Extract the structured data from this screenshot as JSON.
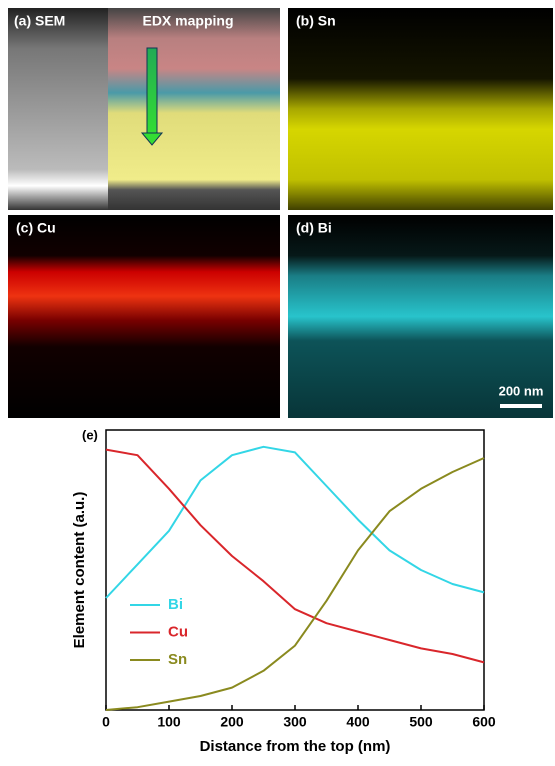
{
  "panels": {
    "a": "(a) SEM",
    "a_overlay": "EDX mapping",
    "b": "(b) Sn",
    "c": "(c) Cu",
    "d": "(d) Bi",
    "scale_bar": "200 nm"
  },
  "chart_data": {
    "type": "line",
    "panel_label": "(e)",
    "x_label": "Distance from the top (nm)",
    "y_label": "Element content (a.u.)",
    "x": [
      0,
      50,
      100,
      150,
      200,
      250,
      300,
      350,
      400,
      450,
      500,
      550,
      600
    ],
    "xlim": [
      0,
      600
    ],
    "xticks": [
      0,
      100,
      200,
      300,
      400,
      500,
      600
    ],
    "ylim": [
      0,
      1
    ],
    "series": [
      {
        "name": "Bi",
        "color": "#33d6e6",
        "values": [
          0.4,
          0.52,
          0.64,
          0.82,
          0.91,
          0.94,
          0.92,
          0.8,
          0.68,
          0.57,
          0.5,
          0.45,
          0.42
        ]
      },
      {
        "name": "Cu",
        "color": "#d9262b",
        "values": [
          0.93,
          0.91,
          0.79,
          0.66,
          0.55,
          0.46,
          0.36,
          0.31,
          0.28,
          0.25,
          0.22,
          0.2,
          0.17
        ]
      },
      {
        "name": "Sn",
        "color": "#8a8a1f",
        "values": [
          0.0,
          0.01,
          0.03,
          0.05,
          0.08,
          0.14,
          0.23,
          0.39,
          0.57,
          0.71,
          0.79,
          0.85,
          0.9
        ]
      }
    ]
  }
}
